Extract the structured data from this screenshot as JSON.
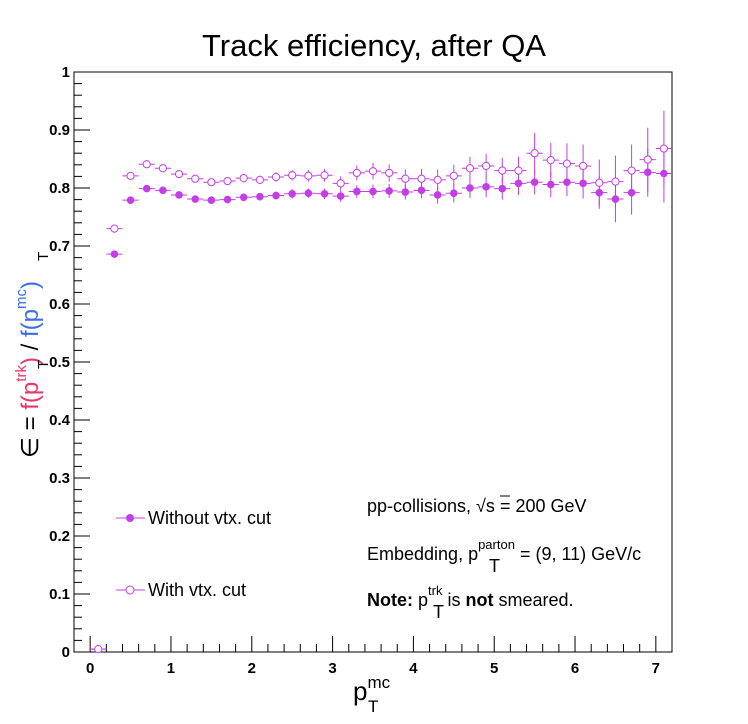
{
  "chart_data": {
    "type": "scatter",
    "title": "Track efficiency, after QA",
    "xlabel": {
      "main": "p",
      "sub": "T",
      "sup": "mc"
    },
    "ylabel": {
      "prefix": "∈ = ",
      "num": {
        "main": "f(p",
        "sub": "T",
        "sup": "trk",
        "close": ")",
        "color": "#e8386a"
      },
      "sep": " / ",
      "den": {
        "main": "f(p",
        "sub": "T",
        "sup": "mc",
        "close": ")",
        "color": "#3b6fe6"
      }
    },
    "xlim": [
      -0.2,
      7.2
    ],
    "ylim": [
      0,
      1
    ],
    "x_ticks": [
      "0",
      "1",
      "2",
      "3",
      "4",
      "5",
      "6",
      "7"
    ],
    "y_ticks": [
      "0",
      "0.1",
      "0.2",
      "0.3",
      "0.4",
      "0.5",
      "0.6",
      "0.7",
      "0.8",
      "0.9",
      "1"
    ],
    "grid": false,
    "legend_placement": "bottom-left",
    "series": [
      {
        "name": "Without vtx. cut",
        "marker": "filled-circle",
        "color": "#c43ee8",
        "x": [
          0.1,
          0.3,
          0.5,
          0.7,
          0.9,
          1.1,
          1.3,
          1.5,
          1.7,
          1.9,
          2.1,
          2.3,
          2.5,
          2.7,
          2.9,
          3.1,
          3.3,
          3.5,
          3.7,
          3.9,
          4.1,
          4.3,
          4.5,
          4.7,
          4.9,
          5.1,
          5.3,
          5.5,
          5.7,
          5.9,
          6.1,
          6.3,
          6.5,
          6.7,
          6.9,
          7.1
        ],
        "y": [
          0.005,
          0.686,
          0.779,
          0.799,
          0.796,
          0.788,
          0.781,
          0.779,
          0.78,
          0.784,
          0.785,
          0.787,
          0.79,
          0.791,
          0.79,
          0.786,
          0.794,
          0.794,
          0.795,
          0.793,
          0.796,
          0.788,
          0.791,
          0.8,
          0.802,
          0.799,
          0.808,
          0.81,
          0.806,
          0.81,
          0.808,
          0.792,
          0.781,
          0.792,
          0.827,
          0.825
        ],
        "yerr": [
          0.002,
          0.004,
          0.005,
          0.005,
          0.005,
          0.005,
          0.005,
          0.005,
          0.005,
          0.006,
          0.006,
          0.007,
          0.008,
          0.008,
          0.009,
          0.01,
          0.011,
          0.012,
          0.012,
          0.013,
          0.014,
          0.015,
          0.016,
          0.017,
          0.018,
          0.019,
          0.02,
          0.021,
          0.022,
          0.024,
          0.026,
          0.028,
          0.04,
          0.038,
          0.042,
          0.05
        ]
      },
      {
        "name": "With vtx. cut",
        "marker": "open-circle",
        "color": "#c43ee8",
        "x": [
          0.1,
          0.3,
          0.5,
          0.7,
          0.9,
          1.1,
          1.3,
          1.5,
          1.7,
          1.9,
          2.1,
          2.3,
          2.5,
          2.7,
          2.9,
          3.1,
          3.3,
          3.5,
          3.7,
          3.9,
          4.1,
          4.3,
          4.5,
          4.7,
          4.9,
          5.1,
          5.3,
          5.5,
          5.7,
          5.9,
          6.1,
          6.3,
          6.5,
          6.7,
          6.9,
          7.1
        ],
        "y": [
          0.005,
          0.73,
          0.821,
          0.841,
          0.834,
          0.824,
          0.816,
          0.81,
          0.812,
          0.817,
          0.814,
          0.819,
          0.822,
          0.821,
          0.822,
          0.808,
          0.826,
          0.829,
          0.826,
          0.816,
          0.816,
          0.814,
          0.821,
          0.834,
          0.838,
          0.83,
          0.83,
          0.86,
          0.848,
          0.842,
          0.838,
          0.809,
          0.811,
          0.83,
          0.849,
          0.868
        ],
        "yerr": [
          0.002,
          0.004,
          0.005,
          0.005,
          0.005,
          0.005,
          0.005,
          0.005,
          0.006,
          0.007,
          0.007,
          0.008,
          0.009,
          0.01,
          0.011,
          0.012,
          0.013,
          0.014,
          0.015,
          0.016,
          0.017,
          0.018,
          0.019,
          0.02,
          0.021,
          0.022,
          0.024,
          0.035,
          0.03,
          0.035,
          0.037,
          0.04,
          0.045,
          0.045,
          0.055,
          0.065
        ]
      }
    ],
    "annotations": [
      {
        "parts": [
          {
            "t": "pp-collisions, "
          },
          {
            "t": "√s",
            "over": true
          },
          {
            "t": " = 200 GeV"
          }
        ]
      },
      {
        "parts": [
          {
            "t": "Embedding, p"
          },
          {
            "t": "T",
            "sub": true,
            "sup": "parton"
          },
          {
            "t": " = (9, 11) GeV/c"
          }
        ]
      },
      {
        "parts": [
          {
            "t": "Note:",
            "bold": true
          },
          {
            "t": " p"
          },
          {
            "t": "T",
            "sub": true,
            "sup": "trk"
          },
          {
            "t": " is "
          },
          {
            "t": "not",
            "bold": true
          },
          {
            "t": " smeared."
          }
        ]
      }
    ]
  }
}
